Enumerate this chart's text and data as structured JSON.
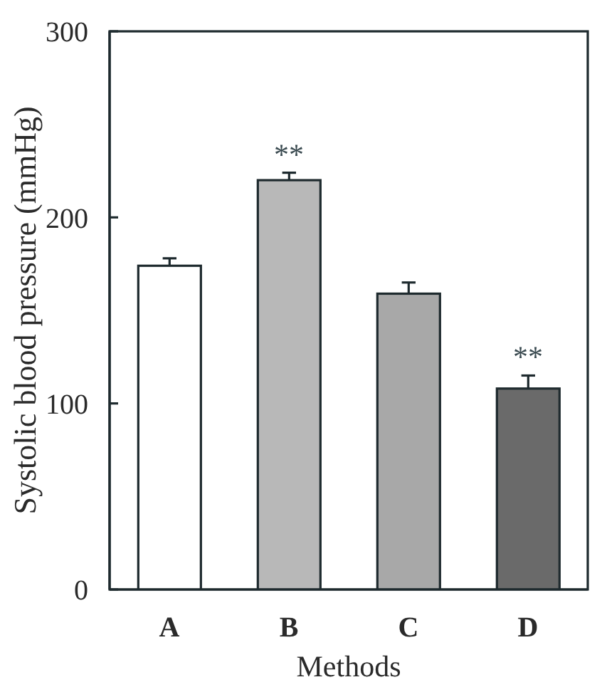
{
  "chart_data": {
    "type": "bar",
    "xlabel": "Methods",
    "ylabel": "Systolic blood pressure (mmHg)",
    "categories": [
      "A",
      "B",
      "C",
      "D"
    ],
    "values": [
      174,
      220,
      159,
      108
    ],
    "errors": [
      4,
      4,
      6,
      7
    ],
    "colors": [
      "#ffffff",
      "#b8b8b8",
      "#a8a8a8",
      "#6a6a6a"
    ],
    "ylim": [
      0,
      300
    ],
    "yticks": [
      0,
      100,
      200,
      300
    ],
    "annotations": [
      {
        "text": "**",
        "x": "B",
        "y": 224
      },
      {
        "text": "**",
        "x": "D",
        "y": 115
      }
    ]
  }
}
